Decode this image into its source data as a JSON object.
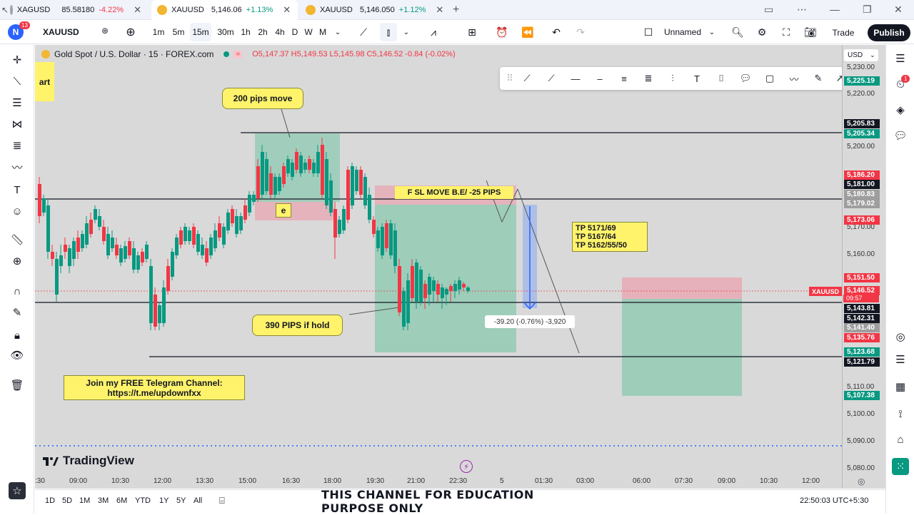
{
  "tabs": [
    {
      "symbol": "XAGUSD",
      "price": "85.58180",
      "change": "-4.22%",
      "direction": "down"
    },
    {
      "symbol": "XAUUSD",
      "price": "5,146.06",
      "change": "+1.13%",
      "direction": "up"
    },
    {
      "symbol": "XAUUSD",
      "price": "5,146.050",
      "change": "+1.12%",
      "direction": "up"
    }
  ],
  "toolbar": {
    "avatar": "N",
    "avatar_badge": "13",
    "symbol": "XAUUSD",
    "intervals": [
      "1m",
      "5m",
      "15m",
      "30m",
      "1h",
      "2h",
      "4h",
      "D",
      "W",
      "M"
    ],
    "active_interval": "15m",
    "layout_name": "Unnamed",
    "trade_label": "Trade",
    "publish_label": "Publish"
  },
  "legend": {
    "title": "Gold Spot / U.S. Dollar · 15 · FOREX.com",
    "ohlc": "O5,147.37 H5,149.53 L5,145.98 C5,146.52 -0.84 (-0.02%)",
    "currency": "USD"
  },
  "price_ticks": [
    "5,230.00",
    "5,220.00",
    "5,200.00",
    "5,170.00",
    "5,160.00",
    "5,110.00",
    "5,100.00",
    "5,090.00",
    "5,080.00"
  ],
  "price_labels": [
    {
      "text": "5,225.19",
      "color": "#089981"
    },
    {
      "text": "5,205.83",
      "color": "#131722"
    },
    {
      "text": "5,205.34",
      "color": "#089981"
    },
    {
      "text": "5,186.20",
      "color": "#f23645"
    },
    {
      "text": "5,181.00",
      "color": "#131722"
    },
    {
      "text": "5,180.83",
      "color": "#9e9e9e"
    },
    {
      "text": "5,179.02",
      "color": "#9e9e9e"
    },
    {
      "text": "5,173.06",
      "color": "#f23645"
    },
    {
      "text": "5,151.50",
      "color": "#f23645"
    },
    {
      "text": "5,146.52",
      "color": "#f23645"
    },
    {
      "text": "5,143.81",
      "color": "#131722"
    },
    {
      "text": "5,142.31",
      "color": "#131722"
    },
    {
      "text": "5,141.40",
      "color": "#9e9e9e"
    },
    {
      "text": "5,135.76",
      "color": "#f23645"
    },
    {
      "text": "5,123.68",
      "color": "#089981"
    },
    {
      "text": "5,121.79",
      "color": "#131722"
    },
    {
      "text": "5,107.38",
      "color": "#089981"
    }
  ],
  "countdown": "09:57",
  "xauusd_tag": "XAUUSD",
  "annotations": {
    "part": "art",
    "pips_move": "200 pips move",
    "e_label": "e",
    "sl_move": "F SL MOVE B.E/ -25 PIPS",
    "tp_lines": [
      "TP 5171/69",
      "TP 5167/64",
      "TP 5162/55/50"
    ],
    "hold": "390 PIPS if hold",
    "measure": "-39.20 (-0.76%) -3,920",
    "telegram_line1": "Join my FREE Telegram Channel:",
    "telegram_line2": "https://t.me/updownfxx"
  },
  "time_ticks": [
    ":30",
    "09:00",
    "10:30",
    "12:00",
    "13:30",
    "15:00",
    "16:30",
    "18:00",
    "19:30",
    "21:00",
    "22:30",
    "5",
    "01:30",
    "03:00",
    "06:00",
    "07:30",
    "09:00",
    "10:30",
    "12:00"
  ],
  "ranges": [
    "1D",
    "5D",
    "1M",
    "3M",
    "6M",
    "YTD",
    "1Y",
    "5Y",
    "All"
  ],
  "brand": "TradingView",
  "banner": "THIS CHANNEL FOR EDUCATION PURPOSE ONLY",
  "clock": "22:50:03 UTC+5:30",
  "right_badge": "1",
  "chart_data": {
    "type": "candlestick",
    "series": [
      {
        "name": "XAUUSD",
        "last": 5146.52
      }
    ],
    "ylim": [
      5075,
      5235
    ]
  }
}
